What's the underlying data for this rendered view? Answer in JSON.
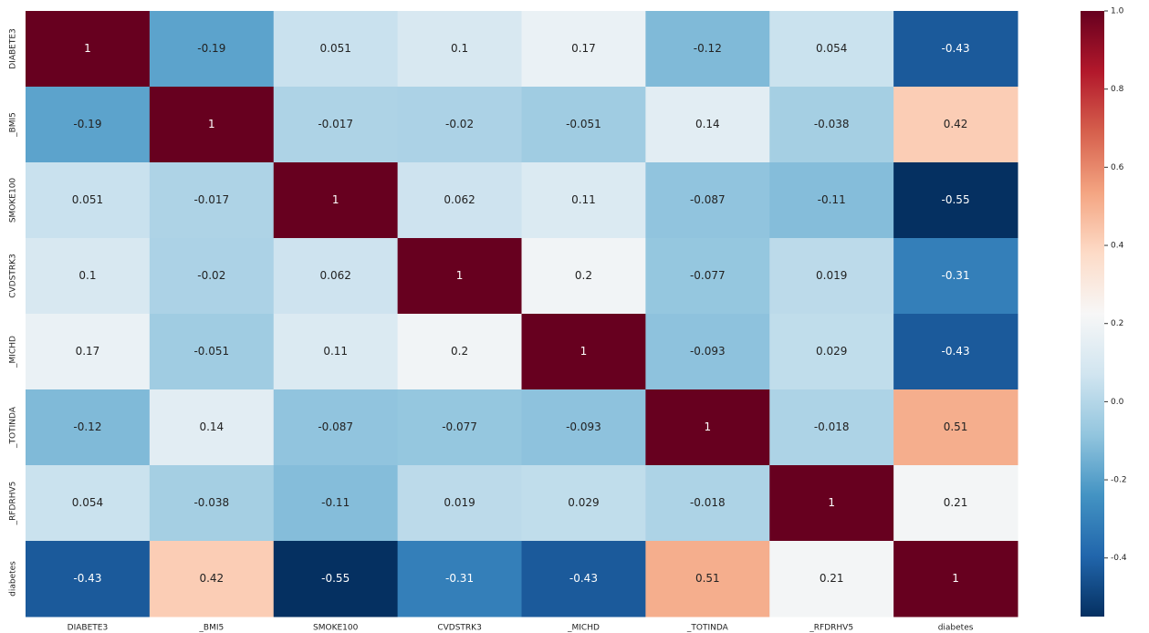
{
  "chart_data": {
    "type": "heatmap",
    "categories": [
      "DIABETE3",
      "_BMI5",
      "SMOKE100",
      "CVDSTRK3",
      "_MICHD",
      "_TOTINDA",
      "_RFDRHV5",
      "diabetes"
    ],
    "values": [
      [
        1,
        -0.19,
        0.051,
        0.1,
        0.17,
        -0.12,
        0.054,
        -0.43
      ],
      [
        -0.19,
        1,
        -0.017,
        -0.02,
        -0.051,
        0.14,
        -0.038,
        0.42
      ],
      [
        0.051,
        -0.017,
        1,
        0.062,
        0.11,
        -0.087,
        -0.11,
        -0.55
      ],
      [
        0.1,
        -0.02,
        0.062,
        1,
        0.2,
        -0.077,
        0.019,
        -0.31
      ],
      [
        0.17,
        -0.051,
        0.11,
        0.2,
        1,
        -0.093,
        0.029,
        -0.43
      ],
      [
        -0.12,
        0.14,
        -0.087,
        -0.077,
        -0.093,
        1,
        -0.018,
        0.51
      ],
      [
        0.054,
        -0.038,
        -0.11,
        0.019,
        0.029,
        -0.018,
        1,
        0.21
      ],
      [
        -0.43,
        0.42,
        -0.55,
        -0.31,
        -0.43,
        0.51,
        0.21,
        1
      ]
    ],
    "colors": [
      "#053061",
      "#2166ac",
      "#4393c3",
      "#92c5de",
      "#d1e5f0",
      "#f7f7f7",
      "#fddbc7",
      "#f4a582",
      "#d6604d",
      "#b2182b",
      "#67001f"
    ],
    "clim": [
      -0.55,
      1
    ],
    "cticks": [
      {
        "value": 1,
        "label": "1.0"
      },
      0.8,
      0.6,
      0.4,
      0.2,
      {
        "value": 0,
        "label": "0.0"
      },
      -0.2,
      -0.4
    ]
  }
}
